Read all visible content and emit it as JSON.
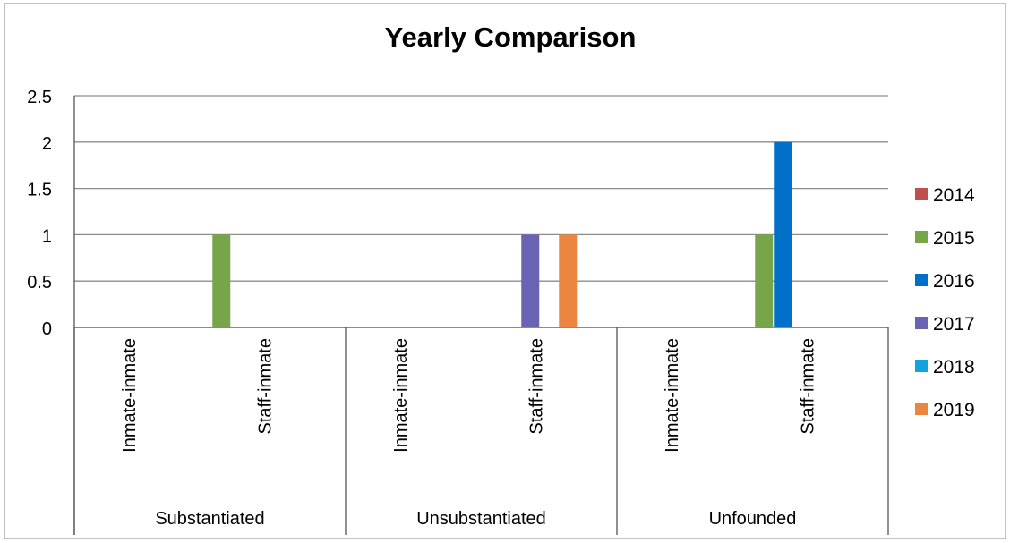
{
  "chart_data": {
    "type": "bar",
    "title": "Yearly Comparison",
    "xlabel": "",
    "ylabel": "",
    "ylim": [
      0,
      2.5
    ],
    "yticks": [
      "0",
      "0.5",
      "1",
      "1.5",
      "2",
      "2.5"
    ],
    "grid": true,
    "legend_position": "right",
    "groups": [
      {
        "label": "Substantiated",
        "categories": [
          "Inmate-inmate",
          "Staff-inmate"
        ]
      },
      {
        "label": "Unsubstantiated",
        "categories": [
          "Inmate-inmate",
          "Staff-inmate"
        ]
      },
      {
        "label": "Unfounded",
        "categories": [
          "Inmate-inmate",
          "Staff-inmate"
        ]
      }
    ],
    "series": [
      {
        "name": "2014",
        "color": "#c0504d",
        "values": [
          0,
          0,
          0,
          0,
          0,
          0
        ]
      },
      {
        "name": "2015",
        "color": "#77a64a",
        "values": [
          0,
          1,
          0,
          0,
          0,
          1
        ]
      },
      {
        "name": "2016",
        "color": "#0070c8",
        "values": [
          0,
          0,
          0,
          0,
          0,
          2
        ]
      },
      {
        "name": "2017",
        "color": "#6a63b3",
        "values": [
          0,
          0,
          0,
          1,
          0,
          0
        ]
      },
      {
        "name": "2018",
        "color": "#12a2dc",
        "values": [
          0,
          0,
          0,
          0,
          0,
          0
        ]
      },
      {
        "name": "2019",
        "color": "#ec8540",
        "values": [
          0,
          0,
          0,
          1,
          0,
          0
        ]
      }
    ]
  }
}
